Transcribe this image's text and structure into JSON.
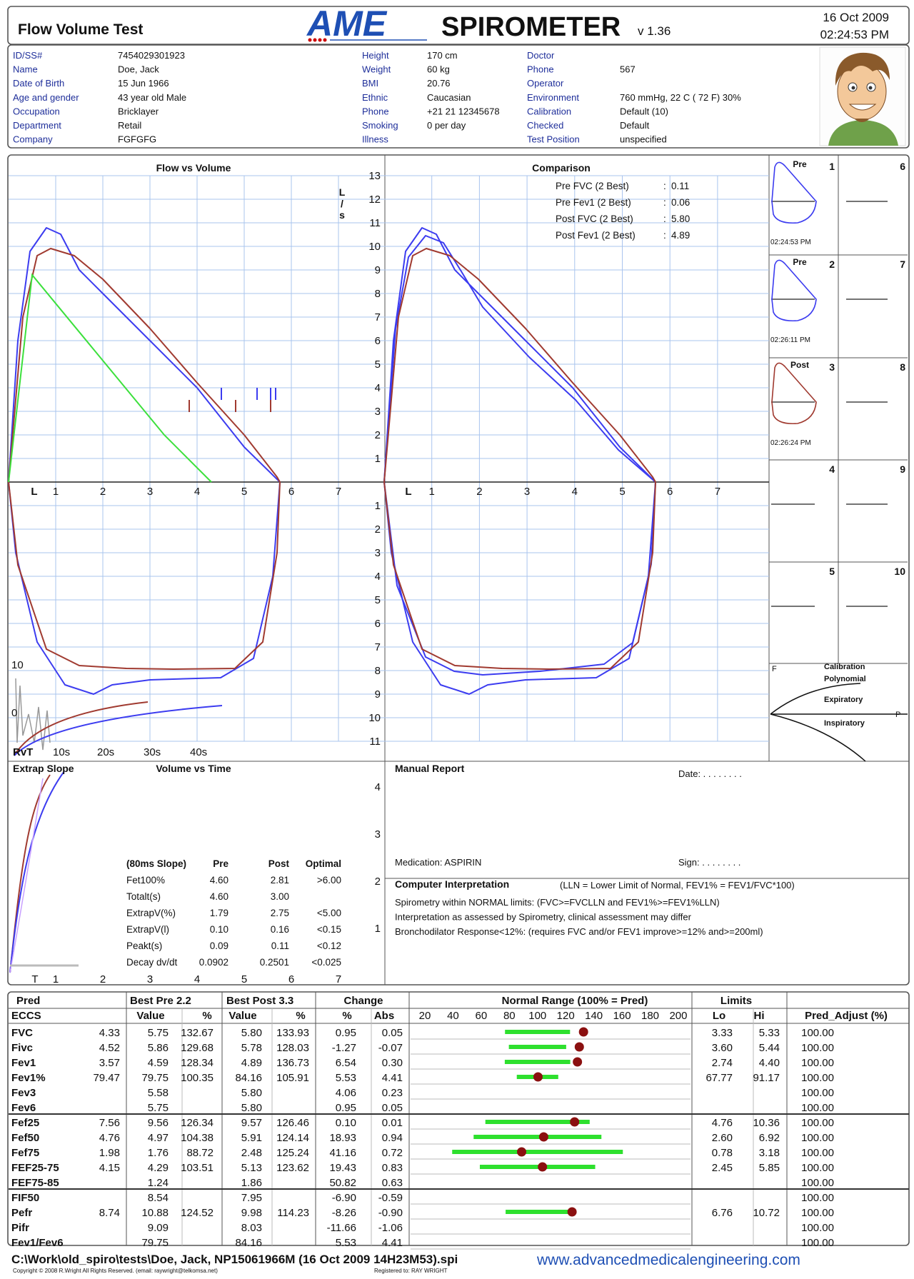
{
  "header": {
    "title": "Flow Volume Test",
    "logo": "AME",
    "product": "SPIROMETER",
    "version": "v 1.36",
    "date": "16 Oct 2009",
    "time": "02:24:53 PM"
  },
  "patient": {
    "col1": [
      [
        "ID/SS#",
        "7454029301923"
      ],
      [
        "Name",
        "Doe, Jack"
      ],
      [
        "Date of Birth",
        "15 Jun 1966"
      ],
      [
        "Age and gender",
        "43 year old Male"
      ],
      [
        "Occupation",
        "Bricklayer"
      ],
      [
        "Department",
        "Retail"
      ],
      [
        "Company",
        "FGFGFG"
      ]
    ],
    "col2": [
      [
        "Height",
        "170 cm"
      ],
      [
        "Weight",
        "60 kg"
      ],
      [
        "BMI",
        "20.76"
      ],
      [
        "Ethnic",
        "Caucasian"
      ],
      [
        "Phone",
        "+21 21 12345678"
      ],
      [
        "Smoking",
        "0 per day"
      ],
      [
        "Illness",
        null
      ]
    ],
    "col3": [
      [
        "Doctor",
        null
      ],
      [
        "Phone",
        "567"
      ],
      [
        "Operator",
        null
      ],
      [
        "Environment",
        "760 mmHg, 22 C ( 72 F) 30%"
      ],
      [
        "Calibration",
        "Default (10)"
      ],
      [
        "Checked",
        "Default"
      ],
      [
        "Test Position",
        "unspecified"
      ]
    ]
  },
  "flow_volume": {
    "title": "Flow vs Volume",
    "unit_label": [
      "L",
      "/",
      "s"
    ],
    "x_ticks": [
      "L",
      1,
      2,
      3,
      4,
      5,
      6,
      7
    ],
    "y_ticks_up": [
      1,
      2,
      3,
      4,
      5,
      6,
      7,
      8,
      9,
      10,
      11,
      12,
      13
    ],
    "y_ticks_down": [
      1,
      2,
      3,
      4,
      5,
      6,
      7,
      8,
      9,
      10,
      11
    ]
  },
  "comparison": {
    "title": "Comparison",
    "separator": ":",
    "rows": [
      [
        "Pre FVC (2 Best)",
        "0.11"
      ],
      [
        "Pre Fev1 (2 Best)",
        "0.06"
      ],
      [
        "Post FVC (2 Best)",
        "5.80"
      ],
      [
        "Post Fev1 (2 Best)",
        "4.89"
      ]
    ]
  },
  "trials": {
    "cells": [
      1,
      2,
      3,
      4,
      5,
      6,
      7,
      8,
      9,
      10
    ],
    "loops": [
      {
        "label": "Pre",
        "time": "02:24:53 PM"
      },
      {
        "label": "Pre",
        "time": "02:26:11 PM"
      },
      {
        "label": "Post",
        "time": "02:26:24 PM"
      }
    ]
  },
  "calibration": {
    "f_label": "F",
    "p_label": "P",
    "labels": [
      "Calibration",
      "Polynomial",
      "Expiratory",
      "Inspiratory"
    ]
  },
  "rvt": {
    "y_ticks": [
      10,
      0
    ],
    "x_ticks": [
      "RvT",
      "10s",
      "20s",
      "30s",
      "40s"
    ]
  },
  "volume_time": {
    "extrap_title": "Extrap Slope",
    "title": "Volume vs Time",
    "y_ticks": [
      4,
      3,
      2,
      1
    ],
    "x_ticks": [
      "T",
      1,
      2,
      3,
      4,
      5,
      6,
      7
    ],
    "slope_table": {
      "header": [
        "(80ms Slope)",
        "Pre",
        "Post",
        "Optimal"
      ],
      "rows": [
        [
          "Fet100%",
          "4.60",
          "2.81",
          ">6.00"
        ],
        [
          "Totalt(s)",
          "4.60",
          "3.00",
          null
        ],
        [
          "ExtrapV(%)",
          "1.79",
          "2.75",
          "<5.00"
        ],
        [
          "ExtrapV(l)",
          "0.10",
          "0.16",
          "<0.15"
        ],
        [
          "Peakt(s)",
          "0.09",
          "0.11",
          "<0.12"
        ],
        [
          "Decay  dv/dt",
          "0.0902",
          "0.2501",
          "<0.025"
        ]
      ]
    }
  },
  "manual_report": {
    "title": "Manual Report",
    "date": "Date: . . . . . . . .",
    "medication": "Medication: ASPIRIN",
    "sign": "Sign: . . . . . . . ."
  },
  "interpretation": {
    "title": "Computer Interpretation",
    "legend": "(LLN = Lower Limit of Normal, FEV1% = FEV1/FVC*100)",
    "lines": [
      "Spirometry within NORMAL limits: (FVC>=FVCLLN and FEV1%>=FEV1%LLN)",
      "Interpretation as assessed by Spirometry, clinical assessment may differ",
      "Bronchodilator Response<12%: (requires FVC and/or FEV1 improve>=12% and>=200ml)"
    ]
  },
  "results": {
    "header1": [
      "Pred",
      "Best Pre 2.2",
      "Best Post 3.3",
      "Change",
      "Normal Range (100% = Pred)",
      "Limits"
    ],
    "header2": [
      "ECCS",
      "Value",
      "%",
      "Value",
      "%",
      "%",
      "Abs",
      "Lo",
      "Hi",
      "Pred_Adjust (%)"
    ],
    "range_ticks": [
      20,
      40,
      60,
      80,
      100,
      120,
      140,
      160,
      180,
      200
    ],
    "rows": [
      [
        "FVC",
        "4.33",
        "5.75",
        "132.67",
        "5.80",
        "133.93",
        "0.95",
        "0.05",
        "3.33",
        "5.33",
        "100.00"
      ],
      [
        "Fivc",
        "4.52",
        "5.86",
        "129.68",
        "5.78",
        "128.03",
        "-1.27",
        "-0.07",
        "3.60",
        "5.44",
        "100.00"
      ],
      [
        "Fev1",
        "3.57",
        "4.59",
        "128.34",
        "4.89",
        "136.73",
        "6.54",
        "0.30",
        "2.74",
        "4.40",
        "100.00"
      ],
      [
        "Fev1%",
        "79.47",
        "79.75",
        "100.35",
        "84.16",
        "105.91",
        "5.53",
        "4.41",
        "67.77",
        "91.17",
        "100.00"
      ],
      [
        "Fev3",
        null,
        "5.58",
        null,
        "5.80",
        null,
        "4.06",
        "0.23",
        null,
        null,
        "100.00"
      ],
      [
        "Fev6",
        null,
        "5.75",
        null,
        "5.80",
        null,
        "0.95",
        "0.05",
        null,
        null,
        "100.00"
      ],
      [
        "Fef25",
        "7.56",
        "9.56",
        "126.34",
        "9.57",
        "126.46",
        "0.10",
        "0.01",
        "4.76",
        "10.36",
        "100.00"
      ],
      [
        "Fef50",
        "4.76",
        "4.97",
        "104.38",
        "5.91",
        "124.14",
        "18.93",
        "0.94",
        "2.60",
        "6.92",
        "100.00"
      ],
      [
        "Fef75",
        "1.98",
        "1.76",
        "88.72",
        "2.48",
        "125.24",
        "41.16",
        "0.72",
        "0.78",
        "3.18",
        "100.00"
      ],
      [
        "FEF25-75",
        "4.15",
        "4.29",
        "103.51",
        "5.13",
        "123.62",
        "19.43",
        "0.83",
        "2.45",
        "5.85",
        "100.00"
      ],
      [
        "FEF75-85",
        null,
        "1.24",
        null,
        "1.86",
        null,
        "50.82",
        "0.63",
        null,
        null,
        "100.00"
      ],
      [
        "FIF50",
        null,
        "8.54",
        null,
        "7.95",
        null,
        "-6.90",
        "-0.59",
        null,
        null,
        "100.00"
      ],
      [
        "Pefr",
        "8.74",
        "10.88",
        "124.52",
        "9.98",
        "114.23",
        "-8.26",
        "-0.90",
        "6.76",
        "10.72",
        "100.00"
      ],
      [
        "Pifr",
        null,
        "9.09",
        null,
        "8.03",
        null,
        "-11.66",
        "-1.06",
        null,
        null,
        "100.00"
      ],
      [
        "Fev1/Fev6",
        null,
        "79.75",
        null,
        "84.16",
        null,
        "5.53",
        "4.41",
        null,
        null,
        "100.00"
      ]
    ]
  },
  "footer": {
    "path": "C:\\Work\\old_spiro\\tests\\Doe, Jack, NP15061966M (16 Oct 2009  14H23M53).spi",
    "copyright": "Copyright © 2008 R.Wright All Rights Reserved. (email: raywright@telkomsa.net)",
    "registered": "Registered to: RAY WRIGHT",
    "url": "www.advancedmedicalengineering.com"
  }
}
